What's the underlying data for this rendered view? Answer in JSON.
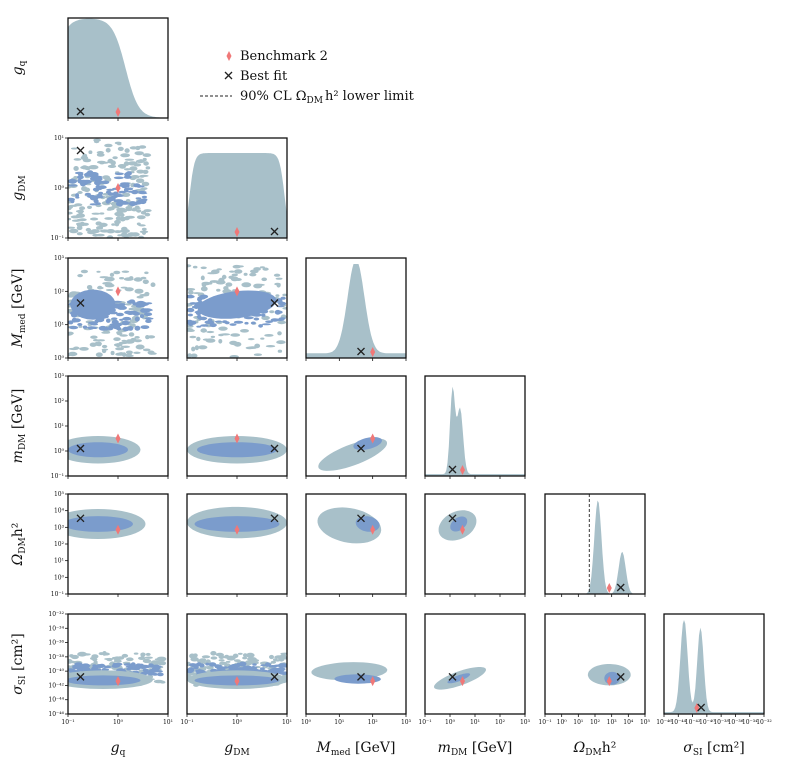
{
  "chart_data": {
    "type": "corner",
    "parameters": [
      {
        "key": "gq",
        "label_base": "g",
        "label_sub": "q",
        "ylabel": "g",
        "unit": "",
        "range_log10": [
          -1,
          1
        ],
        "ticks": [
          "10⁻¹",
          "10⁰",
          "10¹"
        ]
      },
      {
        "key": "gDM",
        "label_base": "g",
        "label_sub": "DM",
        "unit": "",
        "range_log10": [
          -1,
          1
        ],
        "ticks": [
          "10⁻¹",
          "10⁰",
          "10¹"
        ]
      },
      {
        "key": "Mmed",
        "label_base": "M",
        "label_sub": "med",
        "unit": " [GeV]",
        "range_log10": [
          0,
          3
        ],
        "ticks": [
          "10⁰",
          "10¹",
          "10²",
          "10³"
        ]
      },
      {
        "key": "mDM",
        "label_base": "m",
        "label_sub": "DM",
        "unit": " [GeV]",
        "range_log10": [
          -1,
          3
        ],
        "ticks": [
          "10⁻¹",
          "10⁰",
          "10¹",
          "10²",
          "10³"
        ]
      },
      {
        "key": "Omega",
        "label_base": "Ω",
        "label_sub": "DM",
        "unit": "h²",
        "range_log10": [
          -1,
          6
        ],
        "ticks": [
          "10⁻¹",
          "10⁰",
          "10¹",
          "10²",
          "10³",
          "10⁴",
          "10⁵"
        ]
      },
      {
        "key": "sigma",
        "label_base": "σ",
        "label_sub": "SI",
        "unit": " [cm²]",
        "range_log10": [
          -46,
          -32
        ],
        "ticks": [
          "10⁻⁴⁶",
          "10⁻⁴⁴",
          "10⁻⁴²",
          "10⁻⁴⁰",
          "10⁻³⁸",
          "10⁻³⁶",
          "10⁻³⁴",
          "10⁻³²"
        ]
      }
    ],
    "benchmark_2": {
      "gq": 0.0,
      "gDM": 0.0,
      "Mmed": 2.0,
      "mDM": 0.5,
      "Omega": 3.5,
      "sigma": -41.4
    },
    "best_fit": {
      "gq": -0.75,
      "gDM": 0.75,
      "Mmed": 1.65,
      "mDM": 0.1,
      "Omega": 4.3,
      "sigma": -40.8
    },
    "cl_lower_limit_log10_omega": 2.1,
    "legend": [
      {
        "marker": "diamond",
        "text": "Benchmark 2"
      },
      {
        "marker": "cross",
        "text": "Best fit"
      },
      {
        "marker": "dashed-line",
        "text": "90% CL Ω",
        "text_sub": "DM",
        "text_tail": "h² lower limit"
      }
    ],
    "colors": {
      "outer": "#a8c0c9",
      "inner": "#7b9ccc",
      "benchmark": "#f07878",
      "best_fit": "#222222"
    }
  }
}
